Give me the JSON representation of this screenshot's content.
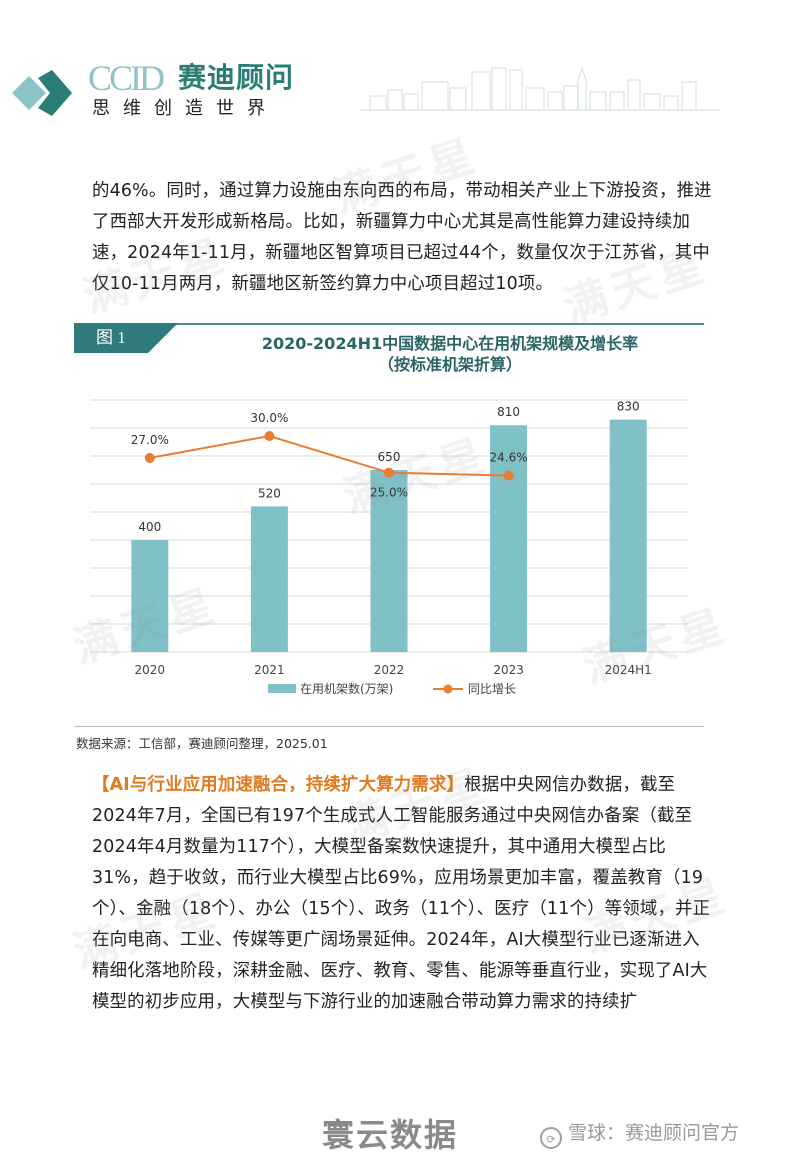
{
  "header": {
    "logo_en": "CCID",
    "logo_cn": "赛迪顾问",
    "slogan": "思维创造世界",
    "brand_color": "#2a7d74",
    "brand_light": "#8cc3c6"
  },
  "paragraph1": "的46%。同时，通过算力设施由东向西的布局，带动相关产业上下游投资，推进了西部大开发形成新格局。比如，新疆算力中心尤其是高性能算力建设持续加速，2024年1-11月，新疆地区智算项目已超过44个，数量仅次于江苏省，其中仅10-11月两月，新疆地区新签约算力中心项目超过10项。",
  "figure": {
    "tag": "图 1",
    "title_line1": "2020-2024H1中国数据中心在用机架规模及增长率",
    "title_line2": "（按标准机架折算）",
    "source": "数据来源：工信部，赛迪顾问整理，2025.01"
  },
  "chart_data": {
    "type": "bar",
    "title": "2020-2024H1中国数据中心在用机架规模及增长率（按标准机架折算）",
    "categories": [
      "2020",
      "2021",
      "2022",
      "2023",
      "2024H1"
    ],
    "series": [
      {
        "name": "在用机架数(万架)",
        "type": "bar",
        "color": "#7fc1c6",
        "values": [
          400,
          520,
          650,
          810,
          830
        ],
        "labels": [
          "400",
          "520",
          "650",
          "810",
          "830"
        ]
      },
      {
        "name": "同比增长",
        "type": "line",
        "color": "#e87d33",
        "values": [
          27.0,
          30.0,
          25.0,
          24.6,
          null
        ],
        "labels": [
          "27.0%",
          "30.0%",
          "25.0%",
          "24.6%",
          ""
        ]
      }
    ],
    "xlabel": "",
    "ylabel": "",
    "ylim": [
      0,
      900
    ],
    "y_gridlines": [
      0,
      100,
      200,
      300,
      400,
      500,
      600,
      700,
      800,
      900
    ],
    "y_axis_visible": false,
    "grid": true,
    "legend_position": "bottom"
  },
  "paragraph2": {
    "highlight": "【AI与行业应用加速融合，持续扩大算力需求】",
    "body": "根据中央网信办数据，截至2024年7月，全国已有197个生成式人工智能服务通过中央网信办备案（截至2024年4月数量为117个），大模型备案数快速提升，其中通用大模型占比31%，趋于收敛，而行业大模型占比69%，应用场景更加丰富，覆盖教育（19个）、金融（18个）、办公（15个）、政务（11个）、医疗（11个）等领域，并正在向电商、工业、传媒等更广阔场景延伸。2024年，AI大模型行业已逐渐进入精细化落地阶段，深耕金融、医疗、教育、零售、能源等垂直行业，实现了AI大模型的初步应用，大模型与下游行业的加速融合带动算力需求的持续扩"
  },
  "watermark": "满天星",
  "footer": {
    "left": "寰云数据",
    "right_icon": "xueqiu-icon",
    "right": "雪球：赛迪顾问官方"
  }
}
